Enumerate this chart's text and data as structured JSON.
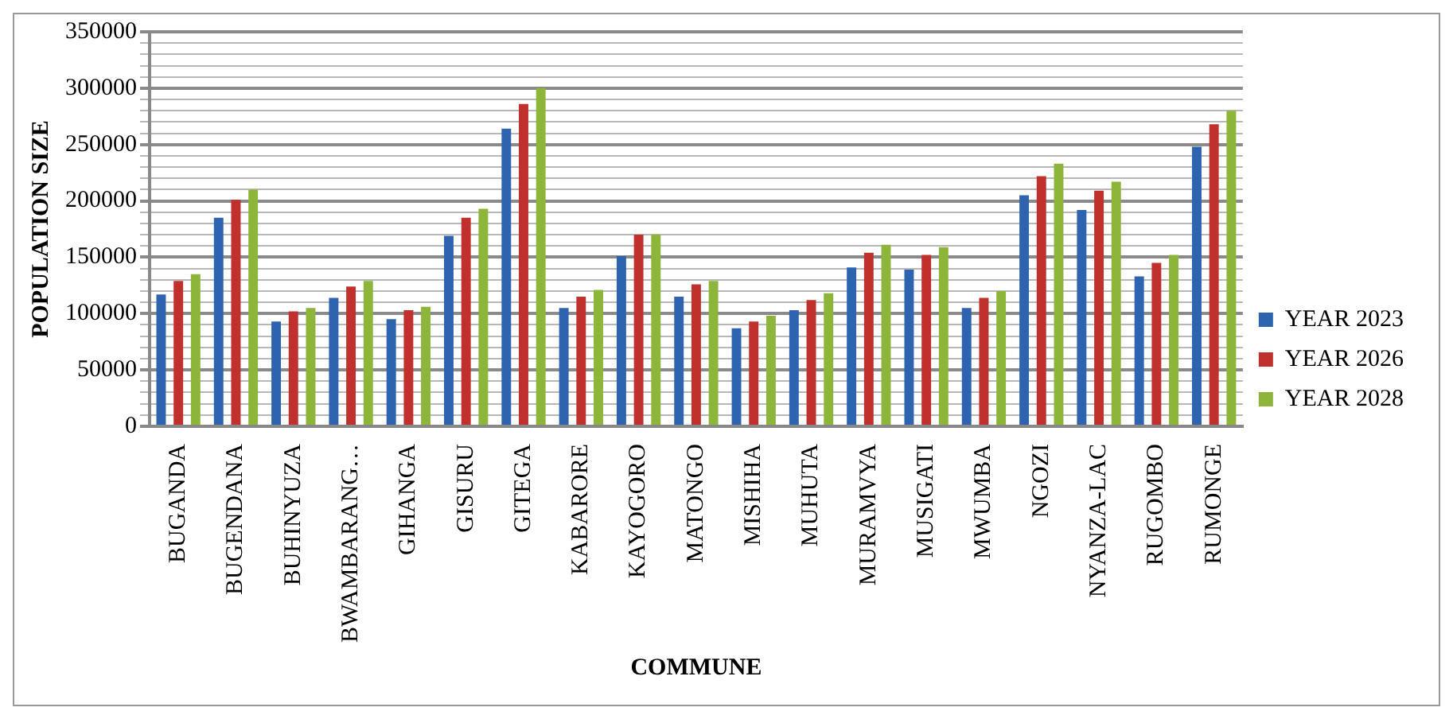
{
  "chart_data": {
    "type": "bar",
    "xlabel": "COMMUNE",
    "ylabel": "POPULATION SIZE",
    "categories": [
      "BUGANDA",
      "BUGENDANA",
      "BUHINYUZA",
      "BWAMBARANG…",
      "GIHANGA",
      "GISURU",
      "GITEGA",
      "KABARORE",
      "KAYOGORO",
      "MATONGO",
      "MISHIHA",
      "MUHUTA",
      "MURAMVYA",
      "MUSIGATI",
      "MWUMBA",
      "NGOZI",
      "NYANZA-LAC",
      "RUGOMBO",
      "RUMONGE"
    ],
    "series": [
      {
        "name": "YEAR 2023",
        "color": "#2e63b0",
        "values": [
          117000,
          185000,
          93000,
          114000,
          95000,
          169000,
          264000,
          105000,
          151000,
          115000,
          87000,
          103000,
          141000,
          139000,
          105000,
          205000,
          192000,
          133000,
          248000
        ]
      },
      {
        "name": "YEAR 2026",
        "color": "#c0302c",
        "values": [
          129000,
          201000,
          102000,
          124000,
          103000,
          185000,
          286000,
          115000,
          170000,
          126000,
          93000,
          112000,
          154000,
          152000,
          114000,
          222000,
          209000,
          145000,
          268000
        ]
      },
      {
        "name": "YEAR 2028",
        "color": "#8db53a",
        "values": [
          135000,
          210000,
          105000,
          129000,
          106000,
          193000,
          300000,
          121000,
          170000,
          129000,
          98000,
          118000,
          161000,
          159000,
          120000,
          233000,
          217000,
          152000,
          280000
        ]
      }
    ],
    "ylim": [
      0,
      350000
    ],
    "yticks": [
      0,
      {
        "value": 10000,
        "label": null
      },
      {
        "value": 20000,
        "label": null
      },
      {
        "value": 30000,
        "label": null
      },
      {
        "value": 40000,
        "label": null
      },
      50000,
      {
        "value": 60000,
        "label": null
      },
      {
        "value": 70000,
        "label": null
      },
      {
        "value": 80000,
        "label": null
      },
      {
        "value": 90000,
        "label": null
      },
      100000,
      {
        "value": 110000,
        "label": null
      },
      {
        "value": 120000,
        "label": null
      },
      {
        "value": 130000,
        "label": null
      },
      {
        "value": 140000,
        "label": null
      },
      150000,
      {
        "value": 160000,
        "label": null
      },
      {
        "value": 170000,
        "label": null
      },
      {
        "value": 180000,
        "label": null
      },
      {
        "value": 190000,
        "label": null
      },
      200000,
      {
        "value": 210000,
        "label": null
      },
      {
        "value": 220000,
        "label": null
      },
      {
        "value": 230000,
        "label": null
      },
      {
        "value": 240000,
        "label": null
      },
      250000,
      {
        "value": 260000,
        "label": null
      },
      {
        "value": 270000,
        "label": null
      },
      {
        "value": 280000,
        "label": null
      },
      {
        "value": 290000,
        "label": null
      },
      300000,
      {
        "value": 310000,
        "label": null
      },
      {
        "value": 320000,
        "label": null
      },
      {
        "value": 330000,
        "label": null
      },
      {
        "value": 340000,
        "label": null
      },
      350000
    ],
    "grid": true,
    "legend": "right"
  }
}
